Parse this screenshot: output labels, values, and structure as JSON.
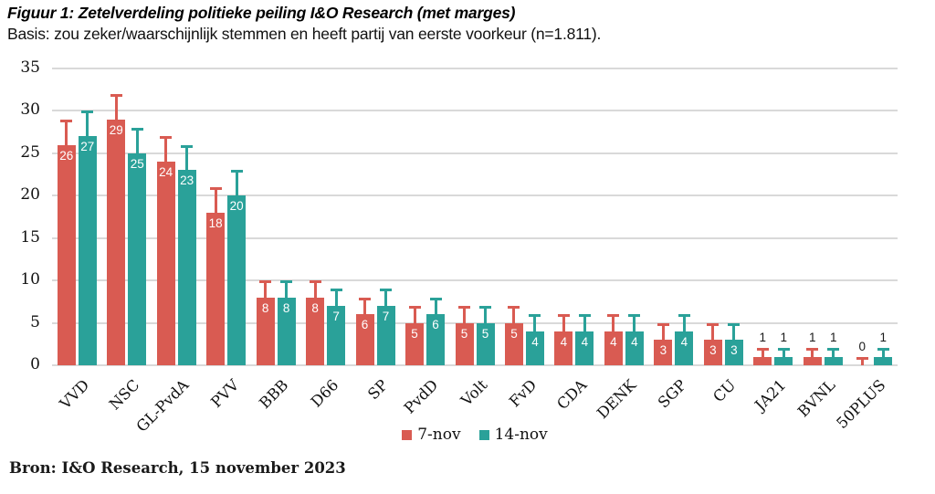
{
  "header": {
    "title": "Figuur 1: Zetelverdeling politieke peiling I&O Research (met marges)",
    "subtitle": "Basis: zou zeker/waarschijnlijk stemmen en heeft partij van eerste voorkeur (n=1.811)."
  },
  "chart_data": {
    "type": "bar",
    "title": "Figuur 1: Zetelverdeling politieke peiling I&O Research (met marges)",
    "categories": [
      "VVD",
      "NSC",
      "GL-PvdA",
      "PVV",
      "BBB",
      "D66",
      "SP",
      "PvdD",
      "Volt",
      "FvD",
      "CDA",
      "DENK",
      "SGP",
      "CU",
      "JA21",
      "BVNL",
      "50PLUS"
    ],
    "series": [
      {
        "name": "7-nov",
        "color": "#d95b52",
        "values": [
          26,
          29,
          24,
          18,
          8,
          8,
          6,
          5,
          5,
          5,
          4,
          4,
          3,
          3,
          1,
          1,
          0
        ],
        "error_up": [
          3,
          3,
          3,
          3,
          2,
          2,
          2,
          2,
          2,
          2,
          2,
          2,
          2,
          2,
          1,
          1,
          1
        ]
      },
      {
        "name": "14-nov",
        "color": "#2aa199",
        "values": [
          27,
          25,
          23,
          20,
          8,
          7,
          7,
          6,
          5,
          4,
          4,
          4,
          4,
          3,
          1,
          1,
          1
        ],
        "error_up": [
          3,
          3,
          3,
          3,
          2,
          2,
          2,
          2,
          2,
          2,
          2,
          2,
          2,
          2,
          1,
          1,
          1
        ]
      }
    ],
    "ylim": [
      0,
      35
    ],
    "yticks": [
      0,
      5,
      10,
      15,
      20,
      25,
      30,
      35
    ],
    "grid": true,
    "legend_position": "bottom-center",
    "colors": {
      "grid": "#d9d9d9",
      "value_label_inside": "#ffffff",
      "value_label_outside": "#1a1a1a",
      "text": "#111111"
    },
    "value_label_inside_min": 3
  },
  "footer": {
    "source": "Bron: I&O Research, 15 november 2023"
  }
}
